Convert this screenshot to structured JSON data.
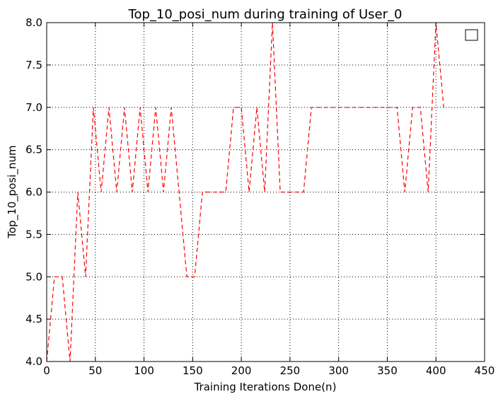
{
  "chart_data": {
    "type": "line",
    "title": "Top_10_posi_num during training of User_0",
    "xlabel": "Training Iterations Done(n)",
    "ylabel": "Top_10_posi_num",
    "xlim": [
      0,
      450
    ],
    "ylim": [
      4.0,
      8.0
    ],
    "xticks": [
      0,
      50,
      100,
      150,
      200,
      250,
      300,
      350,
      400,
      450
    ],
    "yticks": [
      "4.0",
      "4.5",
      "5.0",
      "5.5",
      "6.0",
      "6.5",
      "7.0",
      "7.5",
      "8.0"
    ],
    "grid": true,
    "legend": "top-right (empty)",
    "series": [
      {
        "color": "#ff0000",
        "linestyle": "dashed",
        "x": [
          0,
          8,
          16,
          24,
          32,
          40,
          48,
          56,
          64,
          72,
          80,
          88,
          96,
          104,
          112,
          120,
          128,
          136,
          144,
          152,
          160,
          168,
          176,
          184,
          192,
          200,
          208,
          216,
          224,
          232,
          240,
          248,
          256,
          264,
          272,
          280,
          288,
          296,
          304,
          312,
          320,
          328,
          336,
          344,
          352,
          360,
          368,
          376,
          384,
          392,
          400,
          408
        ],
        "y": [
          4,
          5,
          5,
          4,
          6,
          5,
          7,
          6,
          7,
          6,
          7,
          6,
          7,
          6,
          7,
          6,
          7,
          6,
          5,
          5,
          6,
          6,
          6,
          6,
          7,
          7,
          6,
          7,
          6,
          8,
          6,
          6,
          6,
          6,
          7,
          7,
          7,
          7,
          7,
          7,
          7,
          7,
          7,
          7,
          7,
          7,
          6,
          7,
          7,
          6,
          8,
          7
        ]
      }
    ]
  }
}
